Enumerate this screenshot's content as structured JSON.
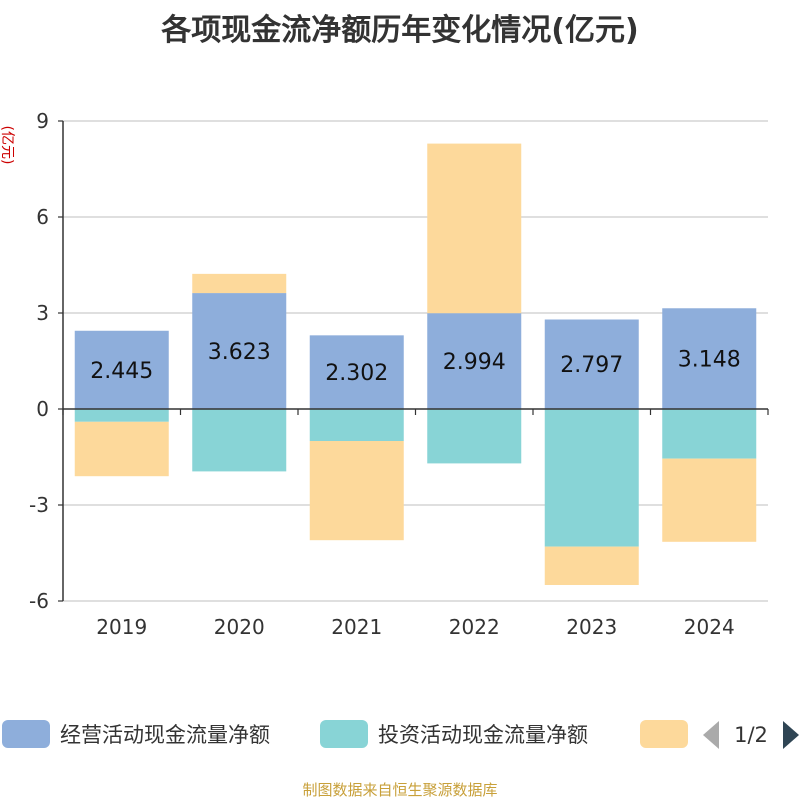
{
  "chart_data": {
    "type": "bar",
    "stacked": true,
    "title": "各项现金流净额历年变化情况(亿元)",
    "unit_label": "(亿元)",
    "categories": [
      "2019",
      "2020",
      "2021",
      "2022",
      "2023",
      "2024"
    ],
    "ylim": [
      -6,
      9
    ],
    "yticks": [
      9,
      6,
      3,
      0,
      -3,
      -6
    ],
    "grid": true,
    "legend_position": "bottom",
    "series": [
      {
        "name": "经营活动现金流量净额",
        "color": "#8eaedb",
        "values": [
          2.445,
          3.623,
          2.302,
          2.994,
          2.797,
          3.148
        ],
        "labels": [
          "2.445",
          "3.623",
          "2.302",
          "2.994",
          "2.797",
          "3.148"
        ]
      },
      {
        "name": "投资活动现金流量净额",
        "color": "#88d4d6",
        "values": [
          -0.4,
          -1.95,
          -1.0,
          -1.7,
          -4.3,
          -1.55
        ]
      },
      {
        "name": "",
        "color": "#fdd99b",
        "values": [
          -1.7,
          0.6,
          -3.1,
          5.3,
          -1.2,
          -2.6
        ]
      }
    ]
  },
  "legend": {
    "items": [
      "经营活动现金流量净额",
      "投资活动现金流量净额",
      ""
    ],
    "page": "1/2"
  },
  "source": "制图数据来自恒生聚源数据库"
}
